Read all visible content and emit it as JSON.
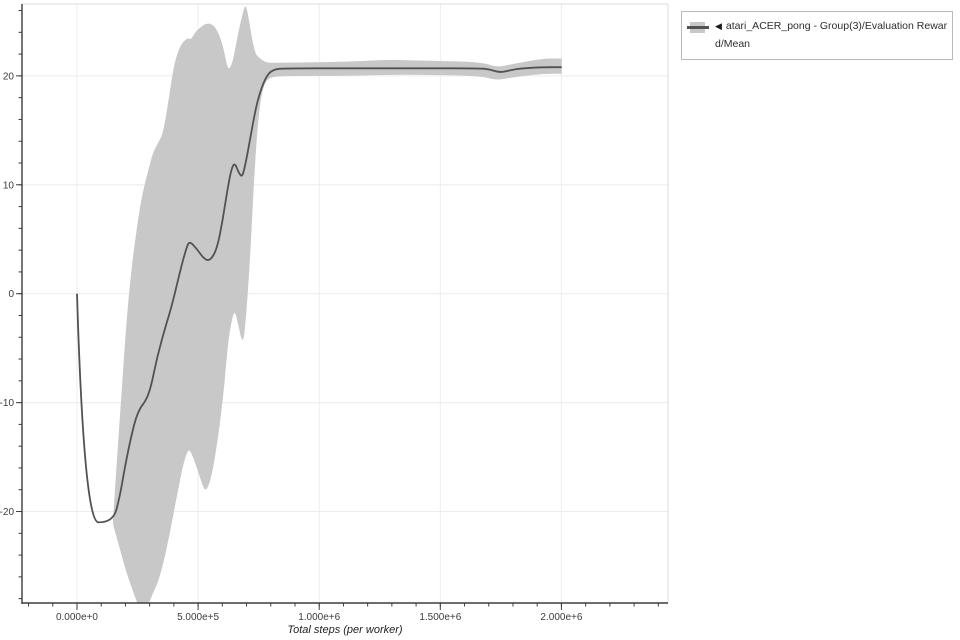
{
  "chart_data": {
    "type": "line",
    "title": "",
    "xlabel": "Total steps (per worker)",
    "ylabel": "",
    "grid": "major",
    "legend_position": "top-right-outside",
    "x_range": [
      -227000,
      2440000
    ],
    "y_range": [
      -28.4,
      26.6
    ],
    "x_minor_step": 100000,
    "y_minor_step": 2,
    "x_ticks": [
      {
        "v": 0,
        "label": "0.000e+0"
      },
      {
        "v": 500000,
        "label": "5.000e+5"
      },
      {
        "v": 1000000,
        "label": "1.000e+6"
      },
      {
        "v": 1500000,
        "label": "1.500e+6"
      },
      {
        "v": 2000000,
        "label": "2.000e+6"
      }
    ],
    "y_ticks": [
      {
        "v": 20,
        "label": "20"
      },
      {
        "v": 10,
        "label": "10"
      },
      {
        "v": 0,
        "label": "0"
      },
      {
        "v": -10,
        "label": "-10"
      },
      {
        "v": -20,
        "label": "-20"
      }
    ],
    "series": [
      {
        "name": "atari_ACER_pong - Group(3)/Evaluation Reward/Mean",
        "line_color": "#525252",
        "band_color": "#c8c8c8",
        "mean": [
          [
            0,
            0.0
          ],
          [
            29000,
            -21.0
          ],
          [
            149000,
            -21.0
          ],
          [
            177000,
            -18.6
          ],
          [
            198000,
            -15.9
          ],
          [
            219000,
            -13.6
          ],
          [
            239000,
            -11.7
          ],
          [
            260000,
            -10.5
          ],
          [
            285000,
            -9.8
          ],
          [
            305000,
            -8.6
          ],
          [
            330000,
            -5.9
          ],
          [
            363000,
            -3.2
          ],
          [
            392000,
            -1.1
          ],
          [
            425000,
            2.0
          ],
          [
            454000,
            4.4
          ],
          [
            466000,
            4.8
          ],
          [
            495000,
            4.1
          ],
          [
            524000,
            3.2
          ],
          [
            549000,
            3.0
          ],
          [
            578000,
            4.1
          ],
          [
            602000,
            6.8
          ],
          [
            623000,
            9.8
          ],
          [
            639000,
            11.6
          ],
          [
            652000,
            12.0
          ],
          [
            668000,
            11.1
          ],
          [
            681000,
            10.7
          ],
          [
            693000,
            11.6
          ],
          [
            714000,
            14.1
          ],
          [
            734000,
            16.6
          ],
          [
            755000,
            18.5
          ],
          [
            784000,
            20.1
          ],
          [
            813000,
            20.6
          ],
          [
            858000,
            20.7
          ],
          [
            1126000,
            20.7
          ],
          [
            1456000,
            20.7
          ],
          [
            1663000,
            20.7
          ],
          [
            1704000,
            20.6
          ],
          [
            1745000,
            20.3
          ],
          [
            1786000,
            20.5
          ],
          [
            1836000,
            20.7
          ],
          [
            1931000,
            20.8
          ],
          [
            2001000,
            20.8
          ]
        ],
        "band": [
          [
            149000,
            -21.2,
            -20.6
          ],
          [
            169000,
            -22.8,
            -13.9
          ],
          [
            190000,
            -24.5,
            -7.1
          ],
          [
            210000,
            -26.0,
            -0.9
          ],
          [
            231000,
            -27.3,
            3.4
          ],
          [
            252000,
            -28.6,
            6.8
          ],
          [
            272000,
            -28.8,
            9.4
          ],
          [
            293000,
            -28.6,
            11.2
          ],
          [
            314000,
            -27.5,
            13.0
          ],
          [
            334000,
            -26.5,
            13.8
          ],
          [
            355000,
            -24.9,
            14.7
          ],
          [
            375000,
            -22.9,
            17.3
          ],
          [
            396000,
            -20.5,
            20.5
          ],
          [
            417000,
            -18.1,
            22.3
          ],
          [
            437000,
            -15.8,
            23.1
          ],
          [
            458000,
            -14.3,
            23.5
          ],
          [
            470000,
            -14.5,
            23.3
          ],
          [
            491000,
            -15.7,
            24.1
          ],
          [
            512000,
            -17.2,
            24.5
          ],
          [
            532000,
            -18.3,
            24.8
          ],
          [
            557000,
            -16.7,
            24.8
          ],
          [
            582000,
            -13.3,
            24.1
          ],
          [
            606000,
            -9.0,
            22.5
          ],
          [
            623000,
            -4.6,
            20.5
          ],
          [
            639000,
            -2.4,
            21.0
          ],
          [
            652000,
            -1.5,
            22.3
          ],
          [
            668000,
            -3.1,
            24.2
          ],
          [
            685000,
            -4.7,
            25.8
          ],
          [
            697000,
            -2.5,
            26.7
          ],
          [
            714000,
            3.0,
            24.6
          ],
          [
            726000,
            8.3,
            23.0
          ],
          [
            738000,
            13.0,
            22.0
          ],
          [
            751000,
            16.6,
            21.7
          ],
          [
            767000,
            18.9,
            21.4
          ],
          [
            788000,
            19.8,
            21.2
          ],
          [
            837000,
            20.0,
            21.2
          ],
          [
            1126000,
            20.0,
            21.3
          ],
          [
            1291000,
            20.1,
            21.5
          ],
          [
            1415000,
            20.1,
            21.4
          ],
          [
            1663000,
            20.0,
            21.3
          ],
          [
            1733000,
            19.6,
            20.8
          ],
          [
            1778000,
            19.8,
            21.0
          ],
          [
            1848000,
            20.0,
            21.3
          ],
          [
            1931000,
            20.2,
            21.6
          ],
          [
            2001000,
            20.2,
            21.6
          ]
        ]
      }
    ]
  },
  "legend": {
    "marker": "◀",
    "entries": [
      {
        "label": "atari_ACER_pong - Group(3)/Evaluation Reward/Mean"
      }
    ]
  },
  "colors": {
    "grid": "#ececec",
    "axis": "#3d3d3d",
    "frame_light": "#dcdcdc",
    "tick_label": "#3d3d3d",
    "band": "#c8c8c8",
    "line": "#525252",
    "legend_border": "#b9b9b9"
  }
}
